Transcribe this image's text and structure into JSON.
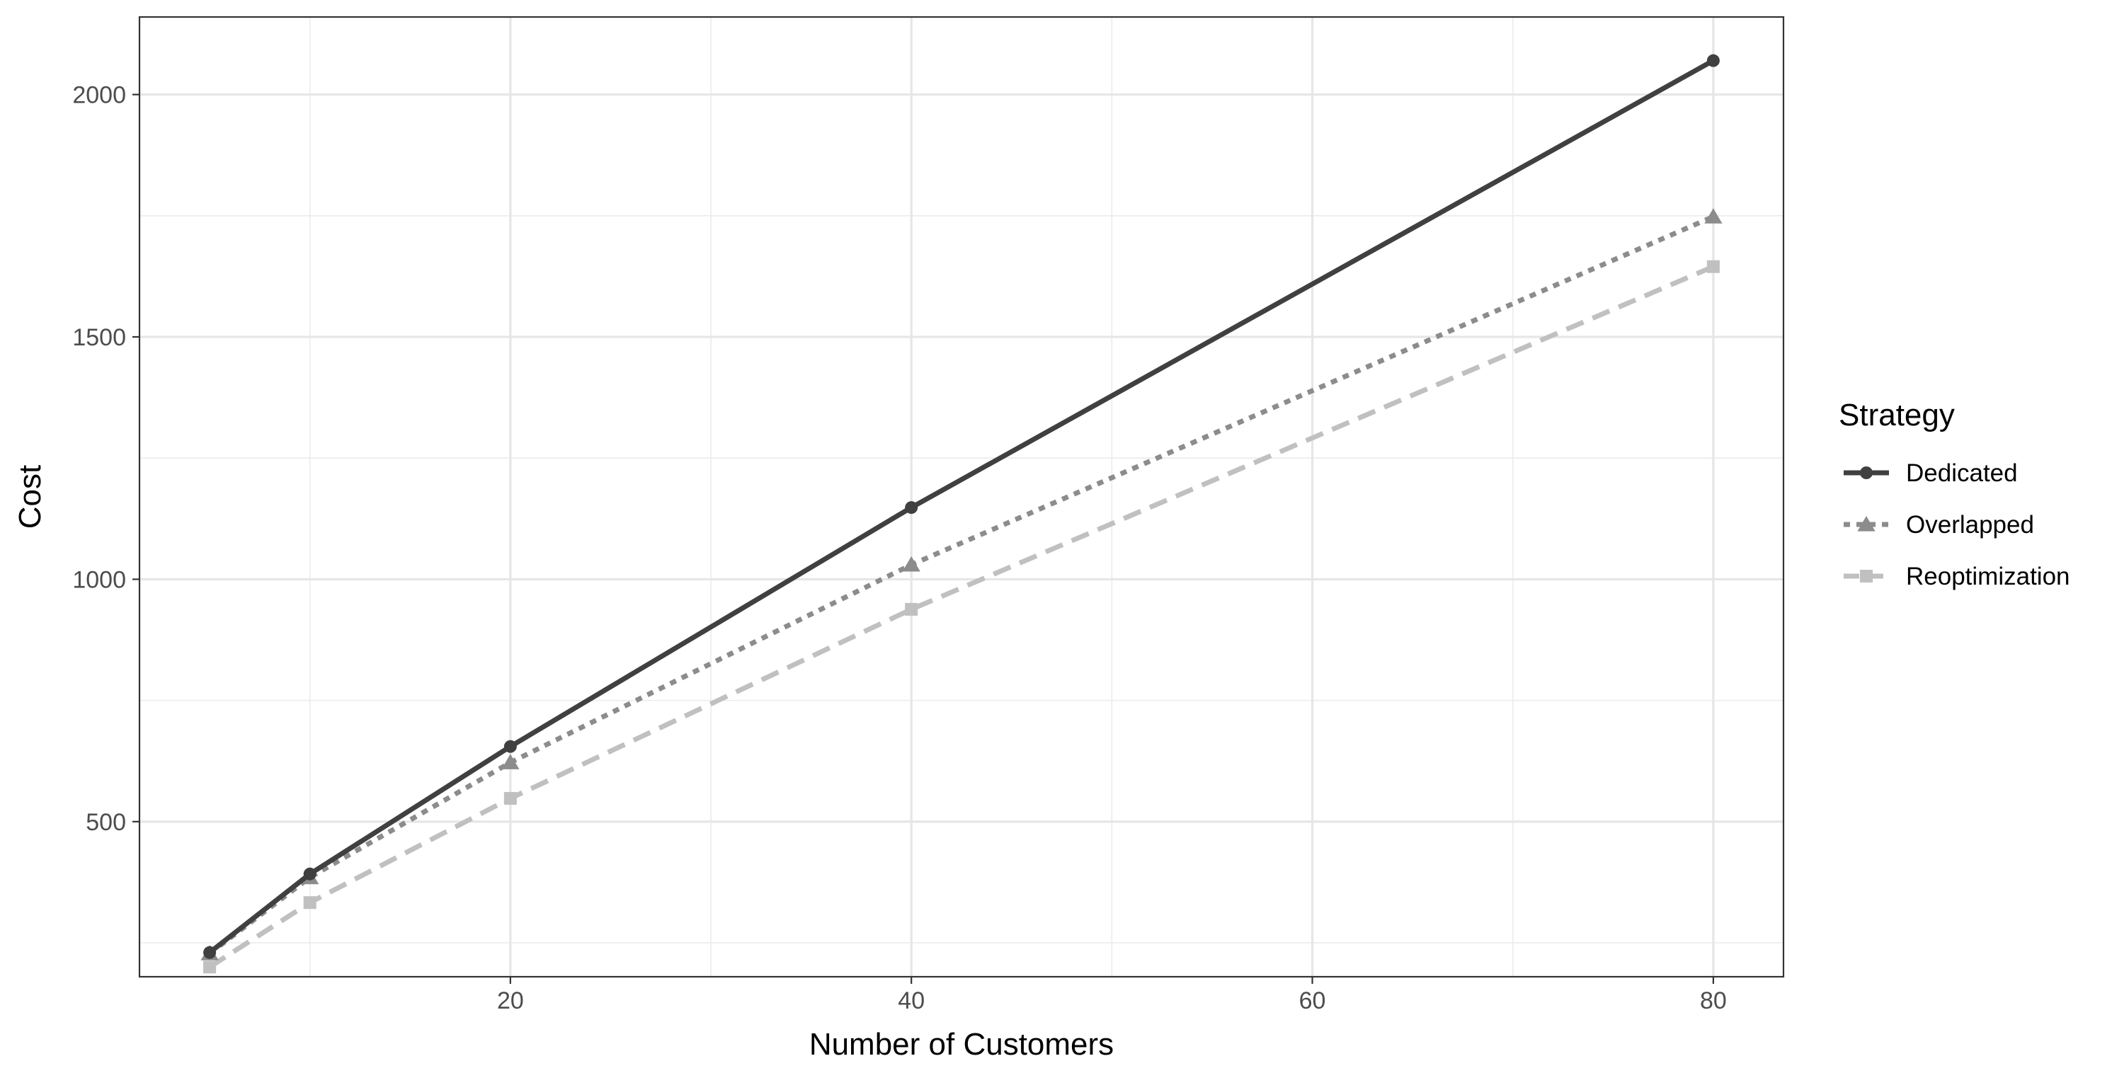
{
  "chart_data": {
    "type": "line",
    "title": "",
    "xlabel": "Number of Customers",
    "ylabel": "Cost",
    "xlim": [
      1.5,
      83.5
    ],
    "ylim": [
      180,
      2160
    ],
    "x_ticks": [
      20,
      40,
      60,
      80
    ],
    "x_tick_labels": [
      "20",
      "40",
      "60",
      "80"
    ],
    "y_ticks": [
      500,
      1000,
      1500,
      2000
    ],
    "y_tick_labels": [
      "500",
      "1000",
      "1500",
      "2000"
    ],
    "x_minor_ticks": [
      10,
      30,
      50,
      70
    ],
    "y_minor_ticks": [
      250,
      750,
      1250,
      1750
    ],
    "grid": true,
    "legend": {
      "title": "Strategy",
      "position": "right"
    },
    "x": [
      5,
      10,
      20,
      40,
      80
    ],
    "series": [
      {
        "name": "Dedicated",
        "values": [
          230,
          392,
          655,
          1148,
          2070
        ],
        "color": "#404040",
        "dash": "solid",
        "marker": "circle"
      },
      {
        "name": "Overlapped",
        "values": [
          228,
          385,
          622,
          1030,
          1748
        ],
        "color": "#8c8c8c",
        "dash": "dotted",
        "marker": "triangle"
      },
      {
        "name": "Reoptimization",
        "values": [
          200,
          333,
          548,
          938,
          1645
        ],
        "color": "#c0c0c0",
        "dash": "dashed",
        "marker": "square"
      }
    ]
  }
}
